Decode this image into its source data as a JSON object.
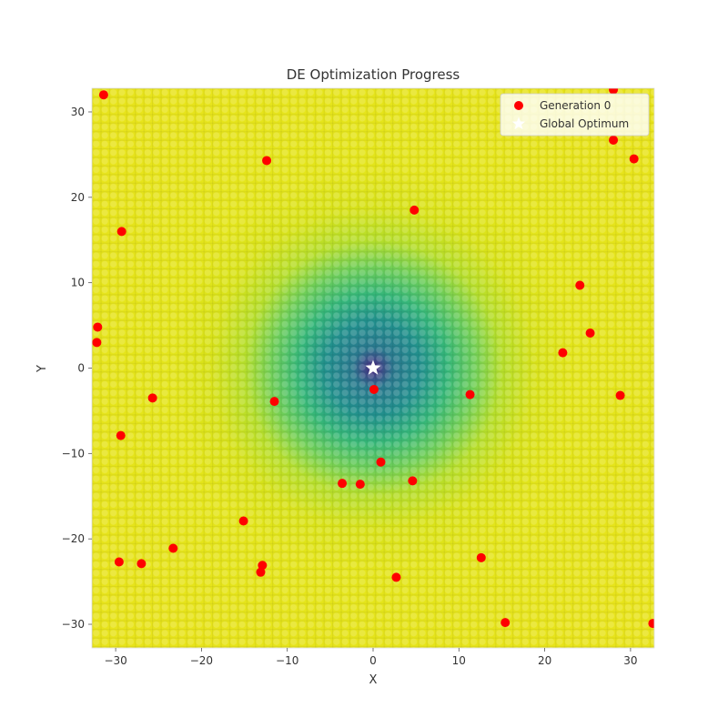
{
  "chart_data": {
    "type": "scatter",
    "title": "DE Optimization Progress",
    "xlabel": "X",
    "ylabel": "Y",
    "xlim": [
      -32.768,
      32.768
    ],
    "ylim": [
      -32.768,
      32.768
    ],
    "xticks": [
      -30,
      -20,
      -10,
      0,
      10,
      20,
      30
    ],
    "yticks": [
      -30,
      -20,
      -10,
      0,
      10,
      20,
      30
    ],
    "tick_labels": [
      "−30",
      "−20",
      "−10",
      "0",
      "10",
      "20",
      "30"
    ],
    "background": "filled contour of the objective (viridis colormap), minimum at center",
    "grid": false,
    "legend_position": "upper right",
    "series": [
      {
        "name": "Generation 0",
        "marker": "circle",
        "color": "#ff0000",
        "points": [
          [
            -31.4,
            32.0
          ],
          [
            -12.4,
            24.3
          ],
          [
            -29.3,
            16.0
          ],
          [
            -32.1,
            4.8
          ],
          [
            -32.2,
            3.0
          ],
          [
            -25.7,
            -3.5
          ],
          [
            -11.5,
            -3.9
          ],
          [
            -29.4,
            -7.9
          ],
          [
            -15.1,
            -17.9
          ],
          [
            -23.3,
            -21.1
          ],
          [
            -29.6,
            -22.7
          ],
          [
            -27.0,
            -22.9
          ],
          [
            -12.9,
            -23.1
          ],
          [
            -13.1,
            -23.9
          ],
          [
            -3.6,
            -13.5
          ],
          [
            -1.5,
            -13.6
          ],
          [
            0.1,
            -2.5
          ],
          [
            0.9,
            -11.0
          ],
          [
            4.6,
            -13.2
          ],
          [
            2.7,
            -24.5
          ],
          [
            4.8,
            18.5
          ],
          [
            11.3,
            -3.1
          ],
          [
            12.6,
            -22.2
          ],
          [
            15.4,
            -29.8
          ],
          [
            22.1,
            1.8
          ],
          [
            24.1,
            9.7
          ],
          [
            25.3,
            4.1
          ],
          [
            28.8,
            -3.2
          ],
          [
            28.0,
            32.6
          ],
          [
            28.0,
            26.7
          ],
          [
            30.4,
            24.5
          ],
          [
            32.6,
            -29.9
          ]
        ]
      },
      {
        "name": "Global Optimum",
        "marker": "star",
        "color": "#ffffff",
        "points": [
          [
            0,
            0
          ]
        ]
      }
    ]
  }
}
